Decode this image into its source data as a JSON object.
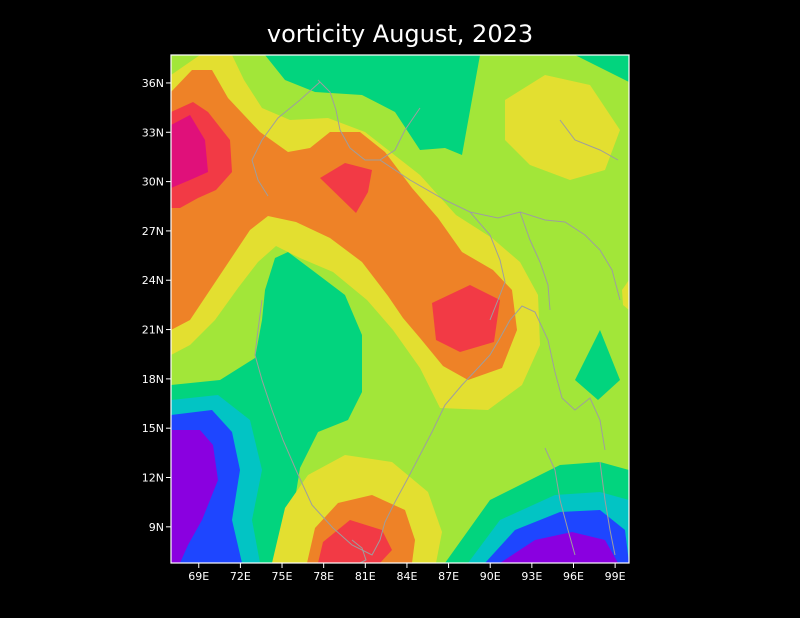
{
  "chart_data": {
    "type": "heatmap",
    "title": "vorticity August, 2023",
    "xlabel": "",
    "ylabel": "",
    "x_ticks": [
      "69E",
      "72E",
      "75E",
      "78E",
      "81E",
      "84E",
      "87E",
      "90E",
      "93E",
      "96E",
      "99E"
    ],
    "y_ticks": [
      "36N",
      "33N",
      "30N",
      "27N",
      "24N",
      "21N",
      "18N",
      "15N",
      "12N",
      "9N"
    ],
    "xlim": [
      67,
      100
    ],
    "ylim": [
      6.8,
      37.7
    ],
    "grid": false,
    "legend": false,
    "palette": {
      "deep_magenta": "#E0107A",
      "red": "#F23A45",
      "orange": "#EE8227",
      "yellow": "#E3DF30",
      "light_green": "#A2E639",
      "green": "#02D47E",
      "cyan": "#02C4C4",
      "blue": "#1E46FF",
      "violet": "#8A00E0",
      "land_outline": "#9E9E9E",
      "frame": "#FFFFFF"
    },
    "regions": [
      {
        "level": "deep_magenta",
        "label": "max positive anomaly over Afghanistan/Pakistan (~68E, 31-33N)"
      },
      {
        "level": "red",
        "label": "positive core near 79-80E, 28-30N"
      },
      {
        "level": "red",
        "label": "positive core over Bay of Bengal head (~87-89E, 21-23N)"
      },
      {
        "level": "red",
        "label": "positive core over south India (~79-82E, 7-9N)"
      },
      {
        "level": "yellow",
        "label": "local high over Tibet (~94-97E, 30-33N)"
      },
      {
        "level": "green",
        "label": "negative tongue over central India (74-79E, 16-25N)"
      },
      {
        "level": "violet",
        "label": "min negative over Arabian Sea (~67-70E, 10-14N)"
      },
      {
        "level": "violet",
        "label": "min negative south of Bay of Bengal (~93-98E, 7-8N)"
      }
    ]
  }
}
